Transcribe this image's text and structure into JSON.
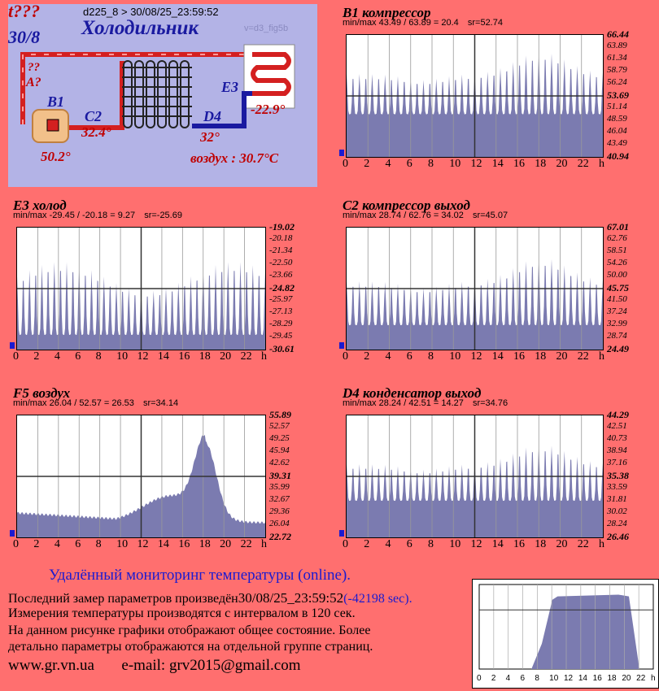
{
  "schematic": {
    "alarm_primary": "t???",
    "date_short": "30/8",
    "device_path": "d225_8  >  30/08/25_23:59:52",
    "title": "Холодильник",
    "version": "v=d3_fig5b",
    "query_marks": "??",
    "a_label": "A?",
    "b1_label": "B1",
    "b1_value": "50.2°",
    "c2_label": "C2",
    "c2_value": "32.4°",
    "d4_label": "D4",
    "d4_value": "32°",
    "e3_label": "E3",
    "e3_value": "-22.9°",
    "air_label": "воздух : 30.7°C"
  },
  "x_ticks": [
    "0",
    "2",
    "4",
    "6",
    "8",
    "10",
    "12",
    "14",
    "16",
    "18",
    "20",
    "22",
    "h"
  ],
  "charts": {
    "b1": {
      "title": "B1 компрессор",
      "minmax": "min/max   43.49 / 63.89 = 20.4",
      "sr": "sr=52.74",
      "yticks": [
        "66.44",
        "63.89",
        "61.34",
        "58.79",
        "56.24",
        "53.69",
        "51.14",
        "48.59",
        "46.04",
        "43.49",
        "40.94"
      ]
    },
    "e3": {
      "title": "E3 холод",
      "minmax": "min/max   -29.45 / -20.18 = 9.27",
      "sr": "sr=-25.69",
      "yticks": [
        "-19.02",
        "-20.18",
        "-21.34",
        "-22.50",
        "-23.66",
        "-24.82",
        "-25.97",
        "-27.13",
        "-28.29",
        "-29.45",
        "-30.61"
      ]
    },
    "c2": {
      "title": "C2 компрессор выход",
      "minmax": "min/max   28.74 / 62.76 = 34.02",
      "sr": "sr=45.07",
      "yticks": [
        "67.01",
        "62.76",
        "58.51",
        "54.26",
        "50.00",
        "45.75",
        "41.50",
        "37.24",
        "32.99",
        "28.74",
        "24.49"
      ]
    },
    "f5": {
      "title": "F5 воздух",
      "minmax": "min/max   26.04 / 52.57 = 26.53",
      "sr": "sr=34.14",
      "yticks": [
        "55.89",
        "52.57",
        "49.25",
        "45.94",
        "42.62",
        "39.31",
        "35.99",
        "32.67",
        "29.36",
        "26.04",
        "22.72"
      ]
    },
    "d4": {
      "title": "D4 конденсатор выход",
      "minmax": "min/max   28.24 / 42.51 = 14.27",
      "sr": "sr=34.76",
      "yticks": [
        "44.29",
        "42.51",
        "40.73",
        "38.94",
        "37.16",
        "35.38",
        "33.59",
        "31.81",
        "30.02",
        "28.24",
        "26.46"
      ]
    }
  },
  "footer": {
    "title": "Удалённый мониторинг температуры (online).",
    "line1_prefix": "Последний замер параметров произведён",
    "line1_time": "30/08/25_23:59:52",
    "line1_delta": "(-42198 sec).",
    "line2": "Измерения температуры  производятся с интервалом в 120 сек.",
    "line3": "На данном рисунке графики отображают общее состояние. Более",
    "line4": "детально параметры отображаются на отдельной группе страниц.",
    "site": "www.gr.vn.ua",
    "email": "e-mail: grv2015@gmail.com"
  },
  "mini_x_ticks": [
    "0",
    "2",
    "4",
    "6",
    "8",
    "10",
    "12",
    "14",
    "16",
    "18",
    "20",
    "22",
    "h"
  ],
  "colors": {
    "background": "#ff6f6f",
    "panel": "#b3b3e6",
    "fill": "#7b7bb0",
    "hot_pipe": "#d42020",
    "cold_pipe": "#1a1aa0",
    "accent_blue": "#1a1ad0"
  }
}
